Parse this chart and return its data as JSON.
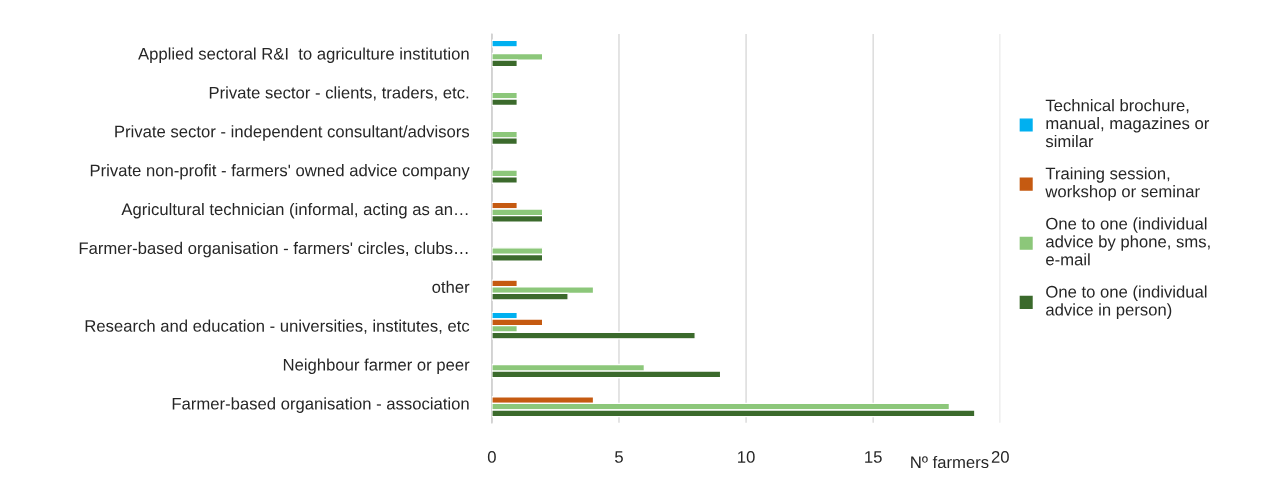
{
  "chart_data": {
    "type": "bar",
    "orientation": "horizontal",
    "xlabel": "Nº farmers",
    "categories": [
      "Applied sectoral R&I  to agriculture institution",
      "Private sector - clients, traders, etc.",
      "Private sector - independent consultant/advisors",
      "Private non-profit - farmers' owned advice company",
      "Agricultural technician (informal, acting as an…",
      "Farmer-based organisation - farmers' circles, clubs…",
      "other",
      "Research and education - universities, institutes, etc",
      "Neighbour farmer or peer",
      "Farmer-based organisation - association"
    ],
    "series": [
      {
        "name": "Technical brochure, manual, magazines or similar",
        "color": "#00b0f0",
        "values": [
          1,
          null,
          null,
          null,
          null,
          null,
          null,
          1,
          null,
          null
        ]
      },
      {
        "name": "Training session, workshop or seminar",
        "color": "#c55a11",
        "values": [
          null,
          null,
          null,
          null,
          1,
          null,
          1,
          2,
          null,
          4
        ]
      },
      {
        "name": "One to one (individual advice by phone, sms, e-mail",
        "color": "#8cc77a",
        "values": [
          2,
          1,
          1,
          1,
          2,
          2,
          4,
          1,
          6,
          18
        ]
      },
      {
        "name": "One to one (individual advice in person)",
        "color": "#3b6a2c",
        "values": [
          1,
          1,
          1,
          1,
          2,
          2,
          3,
          8,
          9,
          19
        ]
      }
    ],
    "xlim": [
      0,
      20
    ],
    "xticks": [
      0,
      5,
      10,
      15,
      20
    ],
    "grid": "x",
    "legend": "right"
  }
}
